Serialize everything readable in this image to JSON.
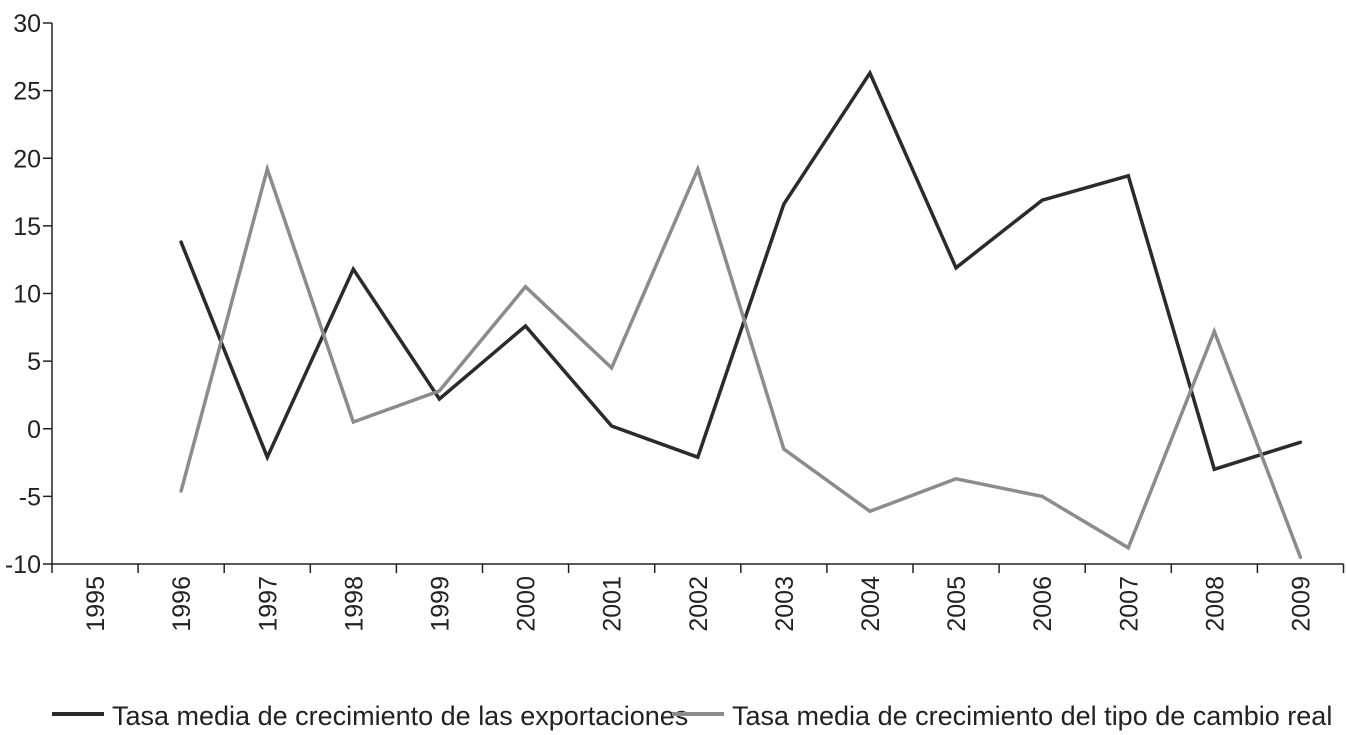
{
  "chart_data": {
    "type": "line",
    "title": "",
    "xlabel": "",
    "ylabel": "",
    "x": [
      "1995",
      "1996",
      "1997",
      "1998",
      "1999",
      "2000",
      "2001",
      "2002",
      "2003",
      "2004",
      "2005",
      "2006",
      "2007",
      "2008",
      "2009"
    ],
    "ylim": [
      -10,
      30
    ],
    "yticks": [
      "30",
      "25",
      "20",
      "15",
      "10",
      "5",
      "0",
      "-5",
      "-10"
    ],
    "ytick_values": [
      30,
      25,
      20,
      15,
      10,
      5,
      0,
      -5,
      -10
    ],
    "grid": false,
    "legend_position": "bottom",
    "series": [
      {
        "name": "Tasa media de crecimiento de las exportaciones",
        "color": "#2b2b2b",
        "values": [
          null,
          13.8,
          -2.1,
          11.8,
          2.2,
          7.6,
          0.2,
          -2.1,
          16.6,
          26.3,
          11.9,
          16.9,
          18.7,
          -3.0,
          -1.0
        ]
      },
      {
        "name": "Tasa media de crecimiento del tipo de cambio real",
        "color": "#8c8c8c",
        "values": [
          null,
          -4.6,
          19.2,
          0.5,
          2.8,
          10.5,
          4.5,
          19.2,
          -1.5,
          -6.1,
          -3.7,
          -5.0,
          -8.8,
          7.2,
          -9.5
        ]
      }
    ]
  }
}
